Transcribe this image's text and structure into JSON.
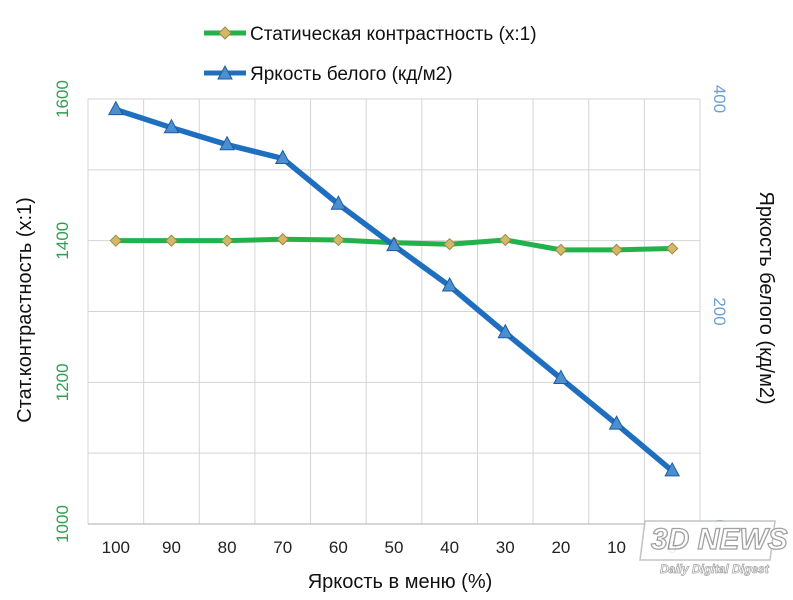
{
  "chart_data": {
    "type": "line",
    "xlabel": "Яркость в меню (%)",
    "ylabel_left": "Стат.контрастность  (x:1)",
    "ylabel_right": "Яркость белого (кд/м2)",
    "categories": [
      "100",
      "90",
      "80",
      "70",
      "60",
      "50",
      "40",
      "30",
      "20",
      "10",
      "0"
    ],
    "ylim_left": [
      1000,
      1600
    ],
    "ylim_right": [
      0,
      400
    ],
    "left_ticks": [
      1000,
      1200,
      1400,
      1600
    ],
    "right_ticks": [
      0,
      200,
      400
    ],
    "grid": true,
    "legend_position": "top",
    "series": [
      {
        "name": "Статическая контрастность (x:1)",
        "axis": "left",
        "color": "#22b24c",
        "marker": "diamond",
        "marker_color": "#d4b86a",
        "values": [
          1400,
          1400,
          1400,
          1402,
          1401,
          1397,
          1395,
          1401,
          1387,
          1387,
          1389
        ]
      },
      {
        "name": "Яркость белого (кд/м2)",
        "axis": "right",
        "color": "#1f6fc0",
        "marker": "triangle",
        "marker_color": "#4a8fd0",
        "values": [
          390,
          373,
          357,
          344,
          301,
          262,
          224,
          180,
          137,
          94,
          50
        ]
      }
    ]
  },
  "watermark": {
    "logo": "3D NEWS",
    "tagline": "Daily Digital Digest"
  }
}
